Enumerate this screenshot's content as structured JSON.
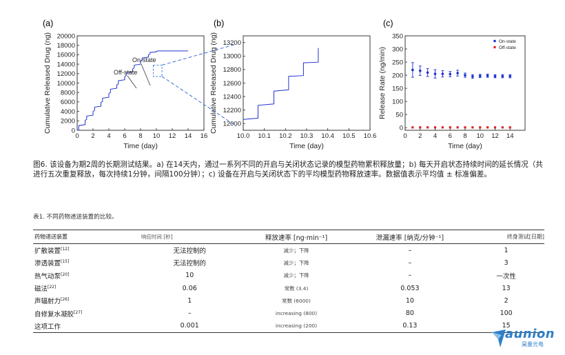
{
  "figure": {
    "panel_labels": [
      "(a)",
      "(b)",
      "(c)"
    ]
  },
  "chart_data": [
    {
      "type": "line",
      "panel": "(a)",
      "xlabel": "Time (day)",
      "ylabel": "Cumulative Released Drug (ng)",
      "xlim": [
        0,
        16
      ],
      "ylim": [
        0,
        20000
      ],
      "x_ticks": [
        "0",
        "2",
        "4",
        "6",
        "8",
        "10",
        "12",
        "14",
        "16"
      ],
      "y_ticks": [
        "0",
        "2000",
        "4000",
        "6000",
        "8000",
        "10000",
        "12000",
        "14000",
        "16000",
        "18000",
        "20000"
      ],
      "color": "#2233cc",
      "x": [
        0.0,
        0.2,
        0.2,
        1.0,
        1.0,
        1.2,
        1.2,
        2.0,
        2.0,
        2.2,
        2.2,
        3.0,
        3.0,
        3.2,
        3.2,
        4.0,
        4.0,
        4.2,
        4.2,
        5.0,
        5.0,
        5.2,
        5.2,
        6.0,
        6.0,
        6.2,
        6.2,
        7.0,
        7.0,
        7.2,
        7.2,
        8.0,
        8.0,
        8.2,
        8.2,
        9.0,
        9.0,
        9.2,
        9.2,
        10.0,
        10.0,
        10.2,
        10.2,
        11.0,
        11.0,
        11.2,
        11.2,
        12.0,
        12.0,
        12.2,
        12.2,
        13.0,
        13.0,
        13.2,
        13.2,
        14.0,
        14.0
      ],
      "y": [
        0,
        0,
        1000,
        1200,
        2100,
        2300,
        3000,
        3200,
        4000,
        4200,
        4900,
        5100,
        5900,
        6100,
        6800,
        7000,
        7800,
        8000,
        8700,
        8900,
        9600,
        9800,
        10500,
        10700,
        11400,
        11600,
        12200,
        12400,
        13000,
        13200,
        13800,
        14000,
        14600,
        14800,
        15300,
        15500,
        16000,
        16200,
        16500,
        16600,
        16700,
        16800,
        16800,
        16800,
        16800,
        16800,
        16800,
        16800,
        16800,
        16800,
        16800,
        16800,
        16800,
        16800,
        16800,
        16800,
        16800
      ],
      "annotations": [
        "On-state",
        "Off-state"
      ]
    },
    {
      "type": "line",
      "panel": "(b)",
      "xlabel": "Time (day)",
      "ylabel": "Cumulative Released Drug (ng)",
      "xlim": [
        10.0,
        10.6
      ],
      "ylim": [
        11900,
        13300
      ],
      "x_ticks": [
        "10.0",
        "10.1",
        "10.2",
        "10.3",
        "10.4",
        "10.5",
        "10.6"
      ],
      "y_ticks": [
        "12000",
        "12200",
        "12400",
        "12600",
        "12800",
        "13000",
        "13200"
      ],
      "color": "#2233cc",
      "x": [
        10.0,
        10.07,
        10.07,
        10.145,
        10.145,
        10.215,
        10.215,
        10.285,
        10.285,
        10.355,
        10.355
      ],
      "y": [
        12060,
        12080,
        12270,
        12290,
        12480,
        12500,
        12700,
        12710,
        12900,
        12910,
        13120
      ]
    },
    {
      "type": "scatter",
      "panel": "(c)",
      "xlabel": "Time (day)",
      "ylabel": "Release Rate (ng/min)",
      "xlim": [
        0,
        16
      ],
      "ylim": [
        -10,
        350
      ],
      "x_ticks": [
        "0",
        "2",
        "4",
        "6",
        "8",
        "10",
        "12",
        "14"
      ],
      "y_ticks": [
        "0",
        "50",
        "100",
        "150",
        "200",
        "250",
        "300",
        "350"
      ],
      "legend_position": "top-right",
      "series": [
        {
          "name": "On-state",
          "color": "#1a2fd0",
          "x": [
            1,
            2,
            3,
            4,
            5,
            6,
            7,
            8,
            9,
            10,
            11,
            12,
            13,
            14
          ],
          "y": [
            220,
            217,
            210,
            205,
            205,
            204,
            208,
            200,
            195,
            197,
            198,
            196,
            196,
            196
          ],
          "err": [
            28,
            18,
            15,
            16,
            12,
            10,
            11,
            8,
            7,
            6,
            6,
            6,
            6,
            6
          ]
        },
        {
          "name": "Off-state",
          "color": "#e02020",
          "x": [
            1,
            2,
            3,
            4,
            5,
            6,
            7,
            8,
            9,
            10,
            11,
            12,
            13,
            14
          ],
          "y": [
            1,
            1,
            1,
            1,
            1,
            1,
            1,
            1,
            1,
            1,
            1,
            1,
            1,
            1
          ]
        }
      ]
    }
  ],
  "caption": "图6. 该设备为期2周的长期测试结果。a) 在14天内，通过一系列不同的开启与关闭状态记录的模型药物累积释放量；b) 每天开启状态持续时间的延长情况（共进行五次重复释放，每次持续1分钟，间隔100分钟）；c) 设备在开启与关闭状态下的平均模型药物释放速率。数据值表示平均值 ± 标准偏差。",
  "table": {
    "title": "表1. 不同药物递送装置的比较。",
    "headers": [
      "药物递送装置",
      "响应时间 [秒]",
      "释放速率 [ng·min⁻¹]",
      "泄漏速率 [纳克/分钟⁻¹]",
      "终身测试[日期]"
    ],
    "rows": [
      {
        "device": "扩散装置",
        "ref": "[12]",
        "response": "无法控制的",
        "release": "减少；下降",
        "leak": "–",
        "life": "1"
      },
      {
        "device": "渗透装置",
        "ref": "[15]",
        "response": "无法控制的",
        "release": "减少；下降",
        "leak": "–",
        "life": "3"
      },
      {
        "device": "热气动泵",
        "ref": "[20]",
        "response": "10",
        "release": "减少；下降",
        "leak": "–",
        "life": "一次性"
      },
      {
        "device": "磁法",
        "ref": "[22]",
        "response": "0.06",
        "release": "常数 (3.4)",
        "leak": "0.053",
        "life": "13"
      },
      {
        "device": "声辐射力",
        "ref": "[26]",
        "response": "1",
        "release": "常数 (6000)",
        "leak": "10",
        "life": "2"
      },
      {
        "device": "自修复水凝胶",
        "ref": "[27]",
        "response": "–",
        "release": "increasing (800)",
        "leak": "80",
        "life": "100"
      },
      {
        "device": "这项工作",
        "ref": "",
        "response": "0.001",
        "release": "increasing (200)",
        "leak": "0.13",
        "life": "15"
      }
    ]
  },
  "logo": {
    "name": "aunion",
    "sub": "昊量光电"
  }
}
